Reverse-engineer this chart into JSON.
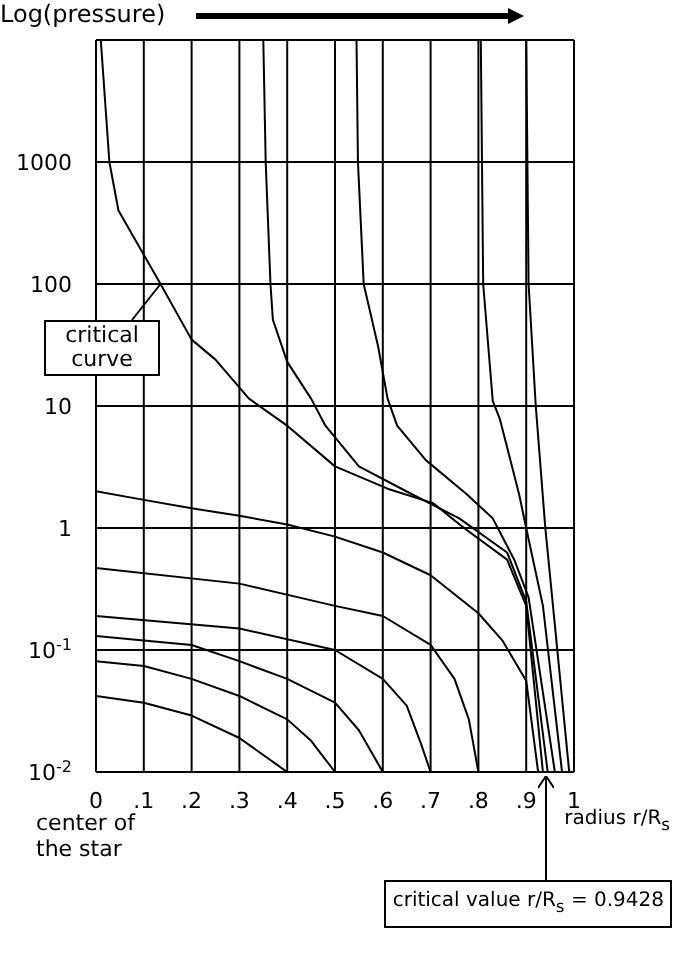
{
  "chart_data": {
    "type": "line",
    "ylabel": "Log(pressure)",
    "xlabel": "radius r/R$_{s}$",
    "xlim": [
      0,
      1
    ],
    "xticks": [
      0,
      {
        "value": 0.1,
        "label": ".1"
      },
      {
        "value": 0.2,
        "label": ".2"
      },
      {
        "value": 0.3,
        "label": ".3"
      },
      {
        "value": 0.4,
        "label": ".4"
      },
      {
        "value": 0.5,
        "label": ".5"
      },
      {
        "value": 0.6,
        "label": ".6"
      },
      {
        "value": 0.7,
        "label": ".7"
      },
      {
        "value": 0.8,
        "label": ".8"
      },
      {
        "value": 0.9,
        "label": ".9"
      },
      1
    ],
    "ylim": [
      0.01,
      10000
    ],
    "yticks": [
      {
        "value": 0.01,
        "label": "10$^{-2}$"
      },
      {
        "value": 0.1,
        "label": "10$^{-1}$"
      },
      1,
      10,
      100,
      1000,
      {
        "value": 10000,
        "label": null
      }
    ],
    "log": "y",
    "grid": true,
    "marker": "none",
    "line_style": "solid",
    "series": [
      {
        "color": "#000000",
        "x": [
          0.01,
          0.028,
          0.047,
          0.135,
          0.2,
          0.25,
          0.32,
          0.4,
          0.5,
          0.61,
          0.705,
          0.77,
          0.86,
          0.9,
          0.935
        ],
        "values": [
          10000,
          1000,
          400,
          100,
          35,
          24,
          11.5,
          6.9,
          3.2,
          2.1,
          1.6,
          1,
          0.55,
          0.23,
          0.01
        ]
      },
      {
        "color": "#000000",
        "x": [
          0.35,
          0.355,
          0.365,
          0.37,
          0.4,
          0.45,
          0.48,
          0.55,
          0.66,
          0.76,
          0.86,
          0.9,
          0.945
        ],
        "values": [
          10000,
          1000,
          100,
          51,
          23,
          11.5,
          6.9,
          3.2,
          1.9,
          1.2,
          0.63,
          0.25,
          0.01
        ]
      },
      {
        "color": "#000000",
        "x": [
          0.545,
          0.548,
          0.56,
          0.59,
          0.61,
          0.63,
          0.69,
          0.775,
          0.83,
          0.875,
          0.905,
          0.96
        ],
        "values": [
          10000,
          1000,
          100,
          31,
          11.5,
          6.9,
          3.6,
          1.9,
          1.2,
          0.55,
          0.27,
          0.01
        ]
      },
      {
        "color": "#000000",
        "x": [
          0.805,
          0.81,
          0.83,
          0.845,
          0.885,
          0.9,
          0.935,
          0.975
        ],
        "values": [
          10000,
          100,
          11,
          7.8,
          1.9,
          1,
          0.23,
          0.01
        ]
      },
      {
        "color": "#000000",
        "x": [
          0.9,
          0.905,
          0.92,
          0.94,
          0.96,
          0.99
        ],
        "values": [
          10000,
          100,
          10,
          1,
          0.16,
          0.01
        ]
      },
      {
        "color": "#000000",
        "x": [
          0,
          0.1,
          0.2,
          0.3,
          0.4,
          0.5,
          0.6,
          0.7,
          0.8,
          0.85,
          0.9,
          0.925
        ],
        "values": [
          2.0,
          1.7,
          1.45,
          1.26,
          1.07,
          0.85,
          0.63,
          0.41,
          0.2,
          0.12,
          0.056,
          0.01
        ]
      },
      {
        "color": "#000000",
        "x": [
          0,
          0.3,
          0.5,
          0.6,
          0.7,
          0.75,
          0.78,
          0.8
        ],
        "values": [
          0.47,
          0.35,
          0.23,
          0.19,
          0.11,
          0.058,
          0.027,
          0.01
        ]
      },
      {
        "color": "#000000",
        "x": [
          0,
          0.3,
          0.5,
          0.6,
          0.65,
          0.68,
          0.7
        ],
        "values": [
          0.19,
          0.15,
          0.1,
          0.058,
          0.035,
          0.017,
          0.01
        ]
      },
      {
        "color": "#000000",
        "x": [
          0,
          0.2,
          0.3,
          0.4,
          0.5,
          0.55,
          0.6
        ],
        "values": [
          0.13,
          0.11,
          0.081,
          0.058,
          0.037,
          0.022,
          0.01
        ]
      },
      {
        "color": "#000000",
        "x": [
          0,
          0.1,
          0.2,
          0.3,
          0.4,
          0.45,
          0.5
        ],
        "values": [
          0.081,
          0.074,
          0.058,
          0.042,
          0.027,
          0.018,
          0.01
        ]
      },
      {
        "color": "#000000",
        "x": [
          0,
          0.1,
          0.2,
          0.3,
          0.4
        ],
        "values": [
          0.042,
          0.037,
          0.029,
          0.019,
          0.01
        ]
      }
    ],
    "annotations": [
      {
        "text": "critical curve",
        "x": 0.135,
        "y": 100
      },
      "center of the star",
      "critical value r/R$_{s}$ = 0.9428"
    ]
  }
}
